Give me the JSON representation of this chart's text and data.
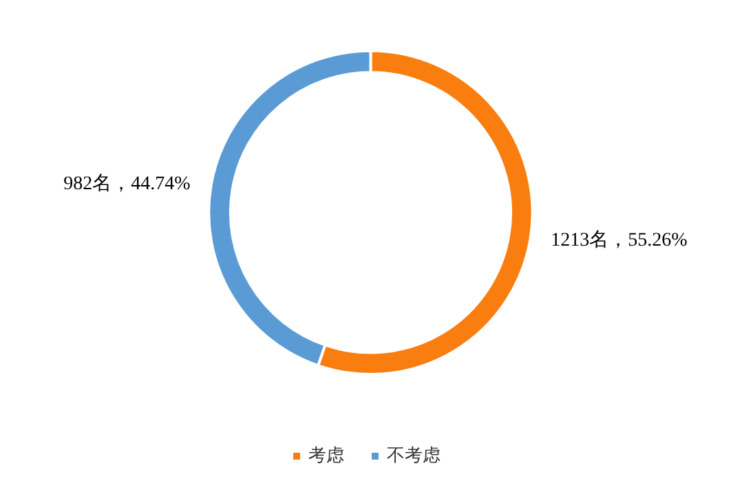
{
  "chart_data": {
    "type": "donut",
    "categories": [
      "考虑",
      "不考虑"
    ],
    "values": [
      1213,
      982
    ],
    "colors": [
      "#fa7d0f",
      "#5b9bd5"
    ],
    "value_labels": [
      "1213名，55.26%",
      "982名，44.74%"
    ],
    "legend": "bottom"
  }
}
